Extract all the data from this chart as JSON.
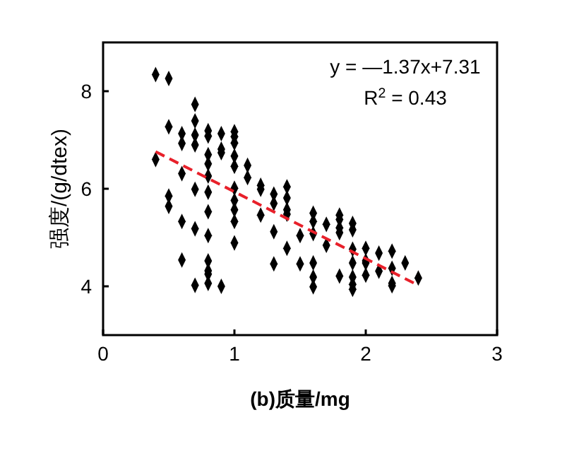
{
  "chart_data": {
    "type": "scatter",
    "xlabel": "(b)质量/mg",
    "ylabel": "强度/(g/dtex)",
    "xlim": [
      0,
      3
    ],
    "xticks": [
      0,
      1,
      2,
      3
    ],
    "ylim": [
      3,
      9
    ],
    "yticks": [
      4,
      6,
      8
    ],
    "marker": "diamond",
    "grid": false,
    "annotations": [
      "y = —1.37x+7.31",
      "R$^{2}$ = 0.43"
    ],
    "series": [
      {
        "color": "#000000",
        "x": [
          0.4,
          0.4,
          0.5,
          0.5,
          0.5,
          0.5,
          0.6,
          0.6,
          0.6,
          0.6,
          0.6,
          0.7,
          0.7,
          0.7,
          0.7,
          0.7,
          0.7,
          0.7,
          0.8,
          0.8,
          0.8,
          0.8,
          0.8,
          0.8,
          0.8,
          0.8,
          0.8,
          0.8,
          0.8,
          0.8,
          0.9,
          0.9,
          0.9,
          0.9,
          1.0,
          1.0,
          1.0,
          1.0,
          1.0,
          1.0,
          1.0,
          1.0,
          1.0,
          1.0,
          1.1,
          1.1,
          1.2,
          1.2,
          1.2,
          1.3,
          1.3,
          1.3,
          1.3,
          1.4,
          1.4,
          1.4,
          1.4,
          1.4,
          1.5,
          1.5,
          1.6,
          1.6,
          1.6,
          1.6,
          1.6,
          1.6,
          1.7,
          1.7,
          1.8,
          1.8,
          1.8,
          1.8,
          1.8,
          1.9,
          1.9,
          1.9,
          1.9,
          1.9,
          1.9,
          1.9,
          2.0,
          2.0,
          2.0,
          2.0,
          2.1,
          2.1,
          2.2,
          2.2,
          2.2,
          2.2,
          2.3,
          2.4
        ],
        "values": [
          8.34,
          6.6,
          8.26,
          7.27,
          5.85,
          5.64,
          7.13,
          6.93,
          6.31,
          5.33,
          4.54,
          7.73,
          7.39,
          7.1,
          6.9,
          5.99,
          5.18,
          4.02,
          7.19,
          7.08,
          6.7,
          6.51,
          6.26,
          5.93,
          5.53,
          5.04,
          4.52,
          4.32,
          4.25,
          4.06,
          7.13,
          6.81,
          6.74,
          4.0,
          7.17,
          7.07,
          6.94,
          6.67,
          6.46,
          6.01,
          5.76,
          5.57,
          5.33,
          4.89,
          6.48,
          6.23,
          6.07,
          5.99,
          5.46,
          5.89,
          5.7,
          5.12,
          4.46,
          6.04,
          5.81,
          5.57,
          5.48,
          4.78,
          5.04,
          4.46,
          5.5,
          5.33,
          5.08,
          4.48,
          4.19,
          3.99,
          5.27,
          4.84,
          5.46,
          5.37,
          5.2,
          5.1,
          4.21,
          5.29,
          5.16,
          4.76,
          4.48,
          4.19,
          4.04,
          3.94,
          4.78,
          4.52,
          4.48,
          4.23,
          4.68,
          4.31,
          4.72,
          4.37,
          4.06,
          4.01,
          4.48,
          4.17
        ]
      },
      {
        "type": "line",
        "color": "#e8202a",
        "line_style": "dashed",
        "marker": "none",
        "x": [
          0.4,
          2.4
        ],
        "values": [
          6.76,
          4.02
        ]
      }
    ]
  }
}
